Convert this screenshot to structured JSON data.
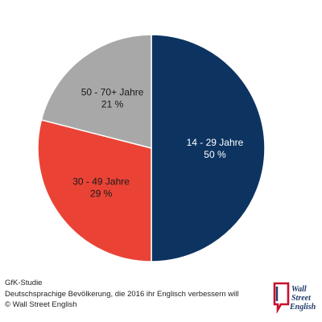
{
  "chart_data": {
    "type": "pie",
    "start_angle_deg": 0,
    "direction": "clockwise",
    "slices": [
      {
        "label": "14 - 29 Jahre",
        "value": 50,
        "value_text": "50 %",
        "color": "#0d3461",
        "text_color": "#ffffff"
      },
      {
        "label": "30 - 49 Jahre",
        "value": 29,
        "value_text": "29 %",
        "color": "#ea4335",
        "text_color": "#1a1a1a"
      },
      {
        "label": "50 - 70+ Jahre",
        "value": 21,
        "value_text": "21 %",
        "color": "#a8a8a8",
        "text_color": "#1a1a1a"
      }
    ]
  },
  "footer": {
    "source": "GfK-Studie",
    "description": "Deutschsprachige Bevölkerung, die 2016 ihr Englisch verbessern will",
    "copyright": "© Wall Street English"
  },
  "logo": {
    "line1": "Wall",
    "line2": "Street",
    "line3": "English",
    "color": "#c8102e",
    "accent": "#1f3a6b"
  }
}
